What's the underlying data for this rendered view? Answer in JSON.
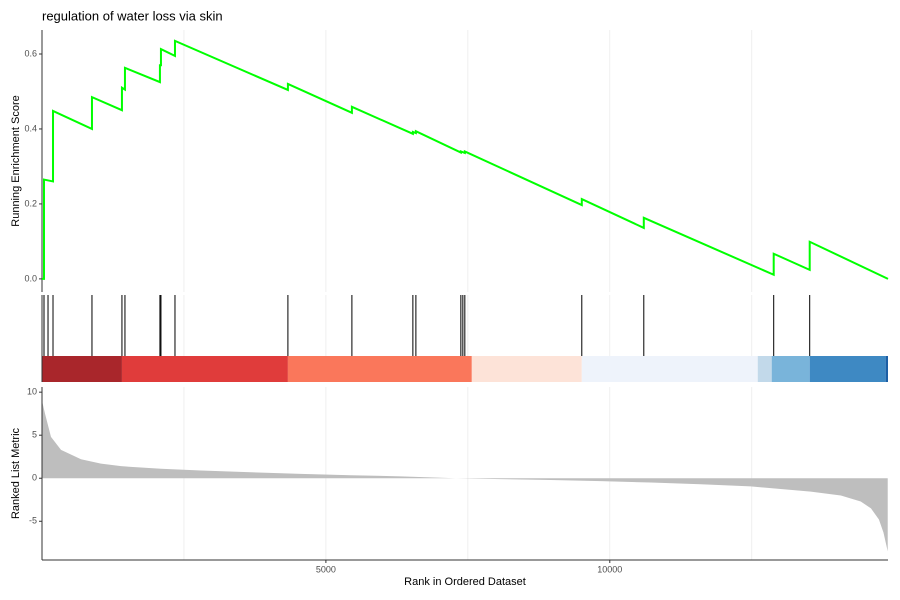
{
  "chart_data": [
    {
      "type": "line",
      "title": "regulation of water loss via skin",
      "ylabel": "Running Enrichment Score",
      "xlim": [
        0,
        14900
      ],
      "ylim": [
        -0.035,
        0.664
      ],
      "yticks": [
        {
          "value": 0,
          "label": "0.0"
        },
        0.2,
        0.4,
        0.6
      ],
      "xgrid": [
        2500,
        5000,
        7500,
        10000,
        12500
      ],
      "series": [
        {
          "color": "#00ff00",
          "x": [
            0,
            35,
            35,
            194,
            194,
            880,
            880,
            1408,
            1408,
            1461,
            1461,
            2077,
            2077,
            2095,
            2095,
            2342,
            2342,
            4331,
            4331,
            5458,
            5458,
            6532,
            6532,
            6585,
            6585,
            7377,
            7377,
            7447,
            7447,
            9507,
            9507,
            10599,
            10599,
            12887,
            12887,
            13521,
            13521,
            14900
          ],
          "values": [
            0,
            0,
            0.265,
            0.26,
            0.448,
            0.4,
            0.485,
            0.45,
            0.51,
            0.505,
            0.563,
            0.525,
            0.57,
            0.57,
            0.613,
            0.595,
            0.635,
            0.504,
            0.52,
            0.443,
            0.459,
            0.387,
            0.392,
            0.389,
            0.394,
            0.337,
            0.34,
            0.336,
            0.34,
            0.197,
            0.213,
            0.136,
            0.163,
            0.011,
            0.067,
            0.024,
            0.099,
            0
          ]
        }
      ]
    },
    {
      "type": "rug",
      "xlim": [
        0,
        14900
      ],
      "xgrid": [
        2500,
        5000,
        7500,
        10000,
        12500
      ],
      "hits": [
        35,
        106,
        194,
        880,
        1408,
        1461,
        2077,
        2095,
        2342,
        4331,
        5458,
        6532,
        6585,
        7377,
        7412,
        7447,
        9507,
        10599,
        12887,
        13521
      ],
      "bands": [
        {
          "start": 0,
          "end": 1408,
          "color": "#a9262b"
        },
        {
          "start": 1408,
          "end": 4331,
          "color": "#e03c3b"
        },
        {
          "start": 4331,
          "end": 7570,
          "color": "#fa775b"
        },
        {
          "start": 7570,
          "end": 9507,
          "color": "#fde3d8"
        },
        {
          "start": 9507,
          "end": 12606,
          "color": "#eef3fb"
        },
        {
          "start": 12606,
          "end": 12852,
          "color": "#c2d9ea"
        },
        {
          "start": 12852,
          "end": 13521,
          "color": "#79b4da"
        },
        {
          "start": 13521,
          "end": 14859,
          "color": "#3e89c3"
        },
        {
          "start": 14859,
          "end": 14900,
          "color": "#1c5fa5"
        }
      ]
    },
    {
      "type": "area",
      "ylabel": "Ranked List Metric",
      "xlabel": "Rank in Ordered Dataset",
      "xlim": [
        0,
        14900
      ],
      "ylim": [
        -9.5,
        10.6
      ],
      "yticks": [
        10,
        5,
        0,
        -5
      ],
      "xticks": [
        5000,
        10000
      ],
      "xgrid": [
        2500,
        5000,
        7500,
        10000,
        12500
      ],
      "color": "#bebebe",
      "x": [
        0,
        53,
        158,
        335,
        687,
        1039,
        1391,
        2095,
        2799,
        3680,
        4560,
        5440,
        6320,
        7290,
        8080,
        8960,
        9840,
        10720,
        11600,
        12480,
        13010,
        13540,
        14070,
        14420,
        14600,
        14740,
        14820,
        14895
      ],
      "values": [
        9,
        7.5,
        4.8,
        3.3,
        2.2,
        1.7,
        1.4,
        1.1,
        0.9,
        0.7,
        0.5,
        0.35,
        0.22,
        0,
        -0.1,
        -0.2,
        -0.33,
        -0.5,
        -0.7,
        -0.95,
        -1.25,
        -1.55,
        -2.0,
        -2.7,
        -3.5,
        -4.8,
        -6.3,
        -8.5
      ]
    }
  ]
}
